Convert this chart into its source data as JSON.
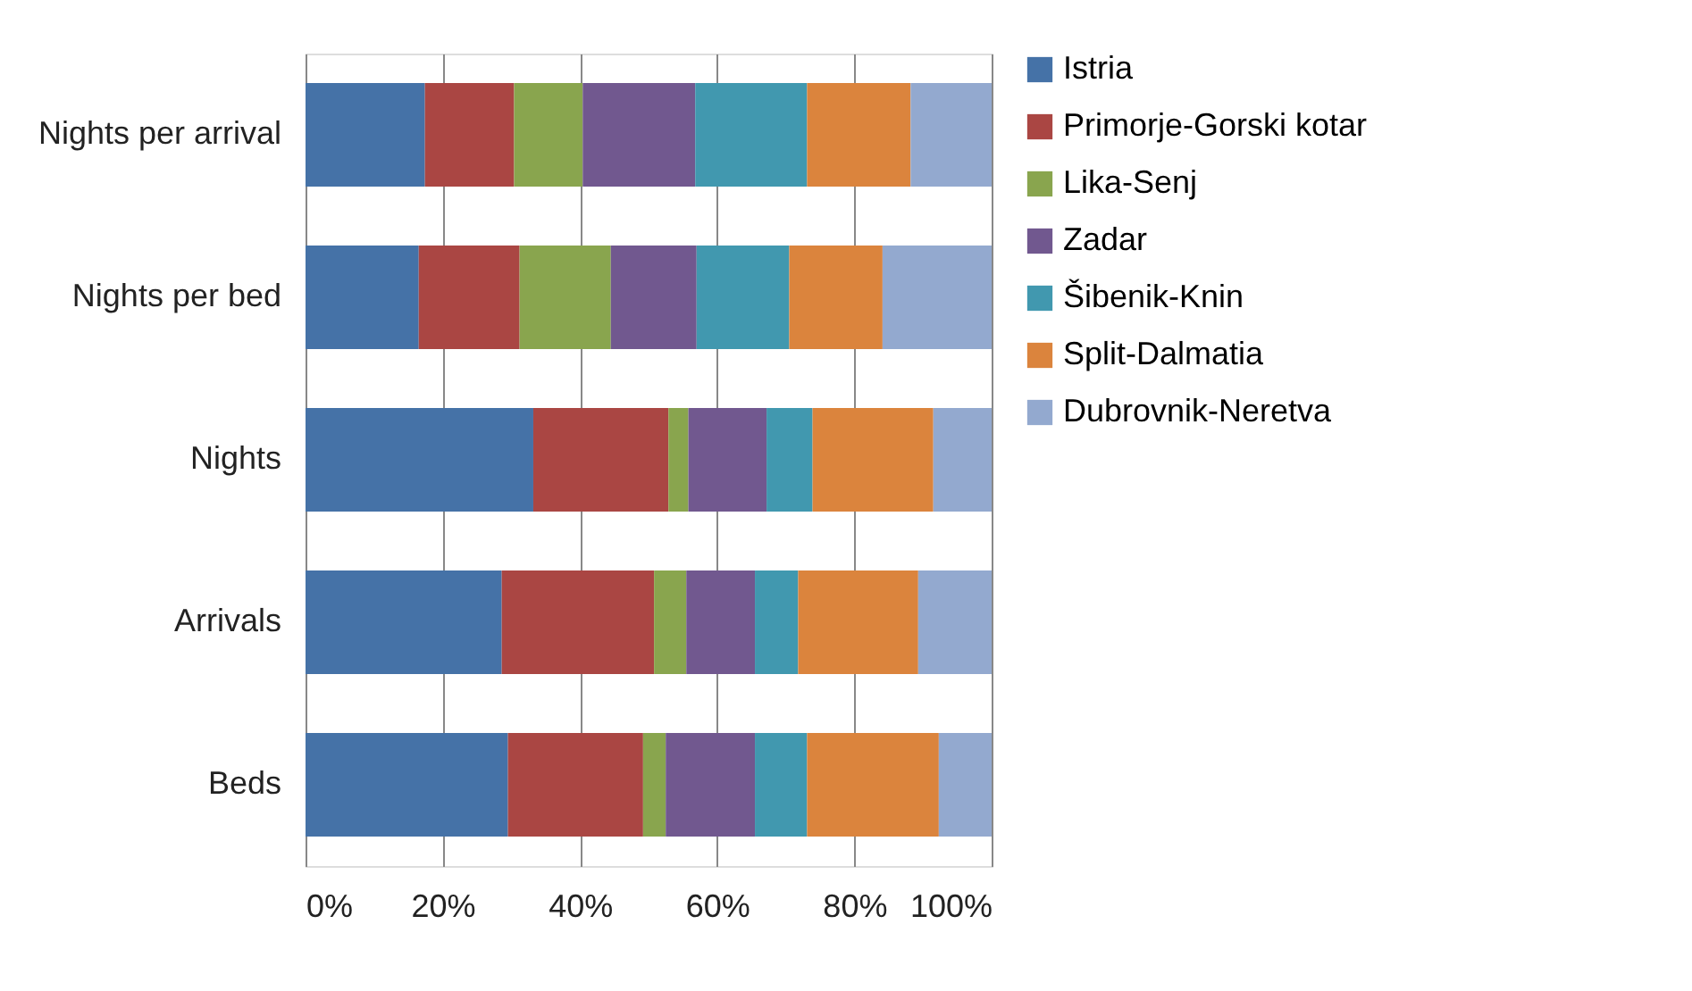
{
  "chart_data": {
    "type": "bar",
    "orientation": "horizontal",
    "stacked": true,
    "categories": [
      "Nights per arrival",
      "Nights per bed",
      "Nights",
      "Arrivals",
      "Beds"
    ],
    "series": [
      {
        "name": "Istria",
        "color": "#4572a7",
        "values": [
          17.4,
          16.5,
          33.2,
          28.6,
          29.5
        ]
      },
      {
        "name": "Primorje-Gorski kotar",
        "color": "#aa4643",
        "values": [
          13.0,
          14.7,
          19.7,
          22.2,
          19.7
        ]
      },
      {
        "name": "Lika-Senj",
        "color": "#89a54e",
        "values": [
          10.0,
          13.3,
          2.9,
          4.7,
          3.3
        ]
      },
      {
        "name": "Zadar",
        "color": "#71588f",
        "values": [
          16.4,
          12.5,
          11.4,
          10.0,
          13.0
        ]
      },
      {
        "name": "Šibenik-Knin",
        "color": "#4198af",
        "values": [
          16.3,
          13.5,
          6.7,
          6.3,
          7.6
        ]
      },
      {
        "name": "Split-Dalmatia",
        "color": "#db843d",
        "values": [
          15.1,
          13.6,
          17.6,
          17.5,
          19.2
        ]
      },
      {
        "name": "Dubrovnik-Neretva",
        "color": "#93a9cf",
        "values": [
          11.8,
          15.9,
          8.5,
          10.7,
          7.7
        ]
      }
    ],
    "xlim": [
      0,
      100
    ],
    "xticks": [
      {
        "value": 0,
        "label": "0%"
      },
      {
        "value": 20,
        "label": "20%"
      },
      {
        "value": 40,
        "label": "40%"
      },
      {
        "value": 60,
        "label": "60%"
      },
      {
        "value": 80,
        "label": "80%"
      },
      {
        "value": 100,
        "label": "100%"
      }
    ],
    "grid": "x",
    "legend": "right"
  }
}
